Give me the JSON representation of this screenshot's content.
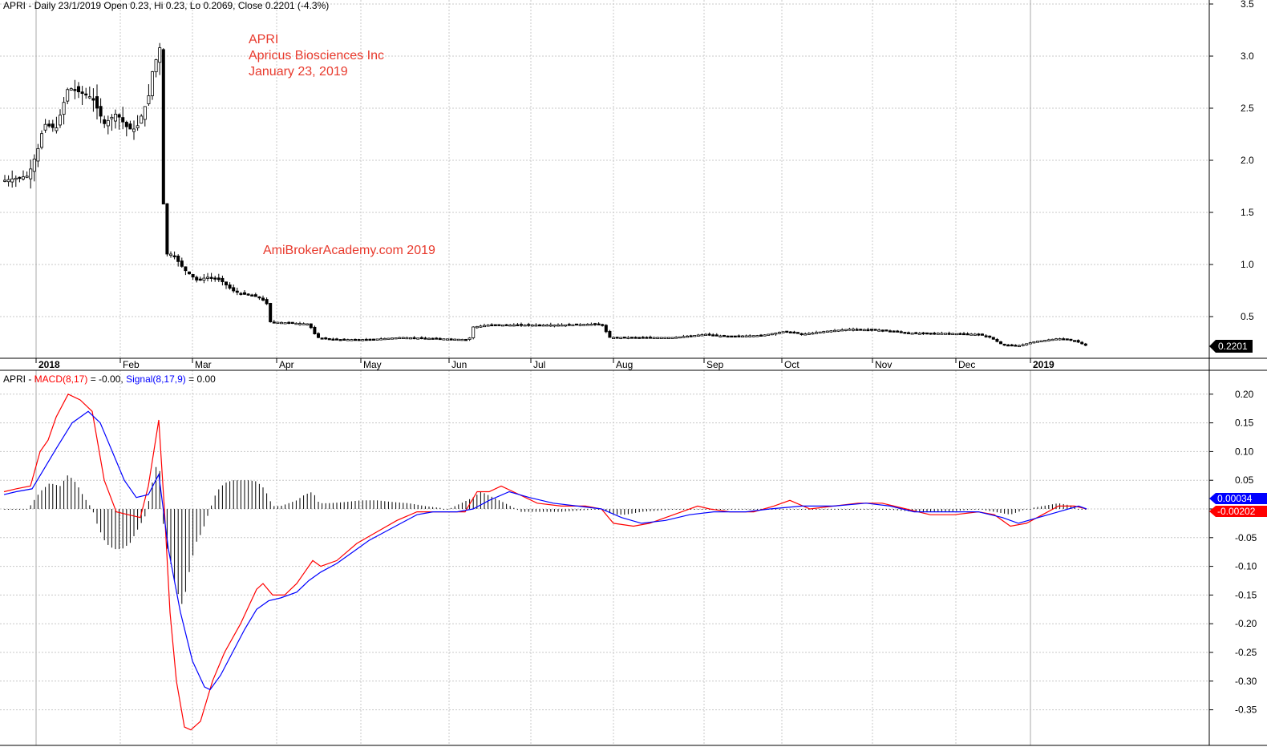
{
  "price_header": {
    "text": "APRI - Daily 23/1/2019 Open 0.23, Hi 0.23, Lo 0.2069, Close 0.2201 (-4.3%)"
  },
  "annotation": {
    "symbol": "APRI",
    "company": "Apricus Biosciences Inc",
    "date": "January 23, 2019"
  },
  "watermark": "AmiBrokerAcademy.com  2019",
  "macd_header": {
    "prefix": "APRI - ",
    "macd_label": "MACD(8,17)",
    "macd_value": " = -0.00, ",
    "signal_label": "Signal(8,17,9)",
    "signal_value": " = 0.00"
  },
  "colors": {
    "macd": "#ff0000",
    "signal": "#0000ff",
    "grid": "#c8c8c8",
    "candle": "#000000",
    "last_price_bg": "#000000",
    "macd_tag_bg": "#ff0000",
    "signal_tag_bg": "#0000ff"
  },
  "chart_data": [
    {
      "type": "candlestick",
      "symbol": "APRI",
      "ylim": [
        0.12,
        3.5
      ],
      "yticks": [
        0.5,
        1.0,
        1.5,
        2.0,
        2.5,
        3.0,
        3.5
      ],
      "ytick_labels": [
        "0.5",
        "1.0",
        "1.5",
        "2.0",
        "2.5",
        "3.0",
        "3.5"
      ],
      "month_labels": [
        "2018",
        "Feb",
        "Mar",
        "Apr",
        "May",
        "Jun",
        "Jul",
        "Aug",
        "Sep",
        "Oct",
        "Nov",
        "Dec",
        "2019"
      ],
      "year_labels": [
        "2018",
        "2019"
      ],
      "last_price": "0.2201",
      "grid": true,
      "close_path": [
        [
          0,
          1.8
        ],
        [
          35,
          1.85
        ],
        [
          47,
          2.1
        ],
        [
          55,
          2.35
        ],
        [
          70,
          2.3
        ],
        [
          85,
          2.7
        ],
        [
          100,
          2.65
        ],
        [
          115,
          2.6
        ],
        [
          130,
          2.35
        ],
        [
          145,
          2.45
        ],
        [
          160,
          2.3
        ],
        [
          170,
          2.3
        ],
        [
          185,
          2.6
        ],
        [
          190,
          2.85
        ],
        [
          200,
          3.1
        ],
        [
          205,
          1.1
        ],
        [
          215,
          1.1
        ],
        [
          230,
          0.95
        ],
        [
          245,
          0.85
        ],
        [
          260,
          0.88
        ],
        [
          275,
          0.85
        ],
        [
          290,
          0.75
        ],
        [
          300,
          0.72
        ],
        [
          315,
          0.7
        ],
        [
          325,
          0.68
        ],
        [
          333,
          0.62
        ],
        [
          336,
          0.45
        ],
        [
          360,
          0.44
        ],
        [
          385,
          0.43
        ],
        [
          395,
          0.3
        ],
        [
          420,
          0.28
        ],
        [
          460,
          0.28
        ],
        [
          500,
          0.3
        ],
        [
          540,
          0.29
        ],
        [
          585,
          0.28
        ],
        [
          590,
          0.4
        ],
        [
          610,
          0.42
        ],
        [
          650,
          0.42
        ],
        [
          700,
          0.42
        ],
        [
          750,
          0.43
        ],
        [
          760,
          0.3
        ],
        [
          800,
          0.3
        ],
        [
          840,
          0.3
        ],
        [
          880,
          0.33
        ],
        [
          905,
          0.31
        ],
        [
          950,
          0.32
        ],
        [
          980,
          0.36
        ],
        [
          1000,
          0.33
        ],
        [
          1030,
          0.36
        ],
        [
          1060,
          0.38
        ],
        [
          1100,
          0.37
        ],
        [
          1140,
          0.34
        ],
        [
          1180,
          0.34
        ],
        [
          1220,
          0.33
        ],
        [
          1235,
          0.3
        ],
        [
          1250,
          0.23
        ],
        [
          1270,
          0.22
        ],
        [
          1290,
          0.26
        ],
        [
          1320,
          0.29
        ],
        [
          1340,
          0.27
        ],
        [
          1355,
          0.22
        ]
      ]
    },
    {
      "type": "line",
      "indicator": "MACD",
      "ylim": [
        -0.4,
        0.22
      ],
      "yticks": [
        0.2,
        0.15,
        0.1,
        0.05,
        0,
        -0.05,
        -0.1,
        -0.15,
        -0.2,
        -0.25,
        -0.3,
        -0.35
      ],
      "ytick_labels": [
        "0.20",
        "0.15",
        "0.10",
        "0.05",
        "",
        "-0.05",
        "-0.10",
        "-0.15",
        "-0.20",
        "-0.25",
        "-0.30",
        "-0.35"
      ],
      "value_tags": [
        "0.00034",
        "-0.00202"
      ],
      "series": [
        {
          "name": "MACD(8,17)",
          "color": "#ff0000",
          "points": [
            [
              5,
              0.03
            ],
            [
              20,
              0.035
            ],
            [
              38,
              0.04
            ],
            [
              50,
              0.1
            ],
            [
              60,
              0.12
            ],
            [
              70,
              0.16
            ],
            [
              85,
              0.2
            ],
            [
              100,
              0.19
            ],
            [
              115,
              0.17
            ],
            [
              130,
              0.05
            ],
            [
              145,
              -0.005
            ],
            [
              160,
              -0.01
            ],
            [
              175,
              -0.015
            ],
            [
              185,
              0.04
            ],
            [
              198,
              0.155
            ],
            [
              205,
              0.0
            ],
            [
              212,
              -0.18
            ],
            [
              220,
              -0.3
            ],
            [
              230,
              -0.38
            ],
            [
              238,
              -0.385
            ],
            [
              250,
              -0.37
            ],
            [
              265,
              -0.3
            ],
            [
              280,
              -0.25
            ],
            [
              300,
              -0.2
            ],
            [
              320,
              -0.14
            ],
            [
              328,
              -0.13
            ],
            [
              340,
              -0.15
            ],
            [
              355,
              -0.15
            ],
            [
              370,
              -0.13
            ],
            [
              390,
              -0.09
            ],
            [
              400,
              -0.1
            ],
            [
              420,
              -0.09
            ],
            [
              445,
              -0.06
            ],
            [
              470,
              -0.04
            ],
            [
              495,
              -0.02
            ],
            [
              520,
              -0.005
            ],
            [
              545,
              -0.005
            ],
            [
              565,
              -0.005
            ],
            [
              580,
              -0.005
            ],
            [
              595,
              0.03
            ],
            [
              610,
              0.03
            ],
            [
              625,
              0.04
            ],
            [
              640,
              0.03
            ],
            [
              670,
              0.01
            ],
            [
              700,
              0.005
            ],
            [
              730,
              0.005
            ],
            [
              750,
              0.0
            ],
            [
              765,
              -0.025
            ],
            [
              790,
              -0.03
            ],
            [
              810,
              -0.025
            ],
            [
              840,
              -0.01
            ],
            [
              870,
              0.005
            ],
            [
              885,
              0.0
            ],
            [
              910,
              -0.005
            ],
            [
              940,
              -0.005
            ],
            [
              965,
              0.005
            ],
            [
              985,
              0.015
            ],
            [
              1010,
              0.0
            ],
            [
              1040,
              0.005
            ],
            [
              1070,
              0.01
            ],
            [
              1100,
              0.01
            ],
            [
              1130,
              0.0
            ],
            [
              1160,
              -0.01
            ],
            [
              1190,
              -0.01
            ],
            [
              1220,
              -0.005
            ],
            [
              1240,
              -0.01
            ],
            [
              1260,
              -0.03
            ],
            [
              1280,
              -0.025
            ],
            [
              1300,
              -0.01
            ],
            [
              1320,
              0.005
            ],
            [
              1340,
              0.005
            ],
            [
              1355,
              0.0
            ]
          ]
        },
        {
          "name": "Signal(8,17,9)",
          "color": "#0000ff",
          "points": [
            [
              5,
              0.025
            ],
            [
              20,
              0.03
            ],
            [
              40,
              0.035
            ],
            [
              55,
              0.07
            ],
            [
              70,
              0.105
            ],
            [
              90,
              0.15
            ],
            [
              110,
              0.17
            ],
            [
              125,
              0.15
            ],
            [
              140,
              0.1
            ],
            [
              155,
              0.05
            ],
            [
              170,
              0.02
            ],
            [
              185,
              0.025
            ],
            [
              198,
              0.06
            ],
            [
              210,
              -0.07
            ],
            [
              225,
              -0.18
            ],
            [
              240,
              -0.265
            ],
            [
              255,
              -0.31
            ],
            [
              262,
              -0.315
            ],
            [
              275,
              -0.29
            ],
            [
              290,
              -0.25
            ],
            [
              305,
              -0.21
            ],
            [
              320,
              -0.175
            ],
            [
              335,
              -0.16
            ],
            [
              350,
              -0.155
            ],
            [
              370,
              -0.145
            ],
            [
              385,
              -0.125
            ],
            [
              400,
              -0.11
            ],
            [
              420,
              -0.095
            ],
            [
              440,
              -0.075
            ],
            [
              460,
              -0.055
            ],
            [
              480,
              -0.04
            ],
            [
              500,
              -0.025
            ],
            [
              520,
              -0.01
            ],
            [
              540,
              -0.005
            ],
            [
              570,
              -0.005
            ],
            [
              590,
              0.0
            ],
            [
              610,
              0.015
            ],
            [
              635,
              0.03
            ],
            [
              660,
              0.02
            ],
            [
              690,
              0.01
            ],
            [
              720,
              0.005
            ],
            [
              750,
              0.0
            ],
            [
              775,
              -0.015
            ],
            [
              800,
              -0.025
            ],
            [
              830,
              -0.02
            ],
            [
              860,
              -0.01
            ],
            [
              890,
              -0.005
            ],
            [
              930,
              -0.005
            ],
            [
              960,
              0.0
            ],
            [
              1000,
              0.005
            ],
            [
              1040,
              0.005
            ],
            [
              1080,
              0.01
            ],
            [
              1110,
              0.005
            ],
            [
              1140,
              -0.005
            ],
            [
              1180,
              -0.005
            ],
            [
              1220,
              -0.005
            ],
            [
              1250,
              -0.015
            ],
            [
              1270,
              -0.025
            ],
            [
              1295,
              -0.015
            ],
            [
              1320,
              -0.005
            ],
            [
              1345,
              0.005
            ],
            [
              1355,
              0.0
            ]
          ]
        }
      ],
      "histogram": [
        [
          5,
          0.0
        ],
        [
          20,
          0.0
        ],
        [
          35,
          0.0
        ],
        [
          50,
          0.03
        ],
        [
          62,
          0.045
        ],
        [
          75,
          0.04
        ],
        [
          85,
          0.06
        ],
        [
          95,
          0.045
        ],
        [
          105,
          0.02
        ],
        [
          115,
          0.0
        ],
        [
          122,
          -0.03
        ],
        [
          132,
          -0.06
        ],
        [
          142,
          -0.07
        ],
        [
          152,
          -0.07
        ],
        [
          162,
          -0.06
        ],
        [
          172,
          -0.035
        ],
        [
          182,
          -0.01
        ],
        [
          192,
          0.06
        ],
        [
          198,
          0.09
        ],
        [
          205,
          -0.05
        ],
        [
          212,
          -0.09
        ],
        [
          220,
          -0.14
        ],
        [
          228,
          -0.17
        ],
        [
          236,
          -0.11
        ],
        [
          244,
          -0.06
        ],
        [
          252,
          -0.04
        ],
        [
          262,
          0.0
        ],
        [
          270,
          0.03
        ],
        [
          280,
          0.045
        ],
        [
          290,
          0.05
        ],
        [
          300,
          0.05
        ],
        [
          310,
          0.05
        ],
        [
          320,
          0.048
        ],
        [
          330,
          0.035
        ],
        [
          340,
          0.005
        ],
        [
          350,
          0.005
        ],
        [
          360,
          0.01
        ],
        [
          370,
          0.015
        ],
        [
          380,
          0.025
        ],
        [
          390,
          0.03
        ],
        [
          398,
          0.01
        ],
        [
          410,
          0.01
        ],
        [
          430,
          0.012
        ],
        [
          450,
          0.015
        ],
        [
          470,
          0.015
        ],
        [
          490,
          0.012
        ],
        [
          510,
          0.01
        ],
        [
          530,
          0.005
        ],
        [
          560,
          0.0
        ],
        [
          590,
          0.02
        ],
        [
          600,
          0.03
        ],
        [
          615,
          0.02
        ],
        [
          630,
          0.01
        ],
        [
          650,
          -0.005
        ],
        [
          700,
          -0.005
        ],
        [
          750,
          0.0
        ],
        [
          765,
          -0.01
        ],
        [
          780,
          -0.01
        ],
        [
          800,
          -0.005
        ],
        [
          850,
          0.0
        ],
        [
          900,
          0.0
        ],
        [
          950,
          0.0
        ],
        [
          1000,
          0.0
        ],
        [
          1050,
          0.0
        ],
        [
          1100,
          0.0
        ],
        [
          1140,
          -0.005
        ],
        [
          1180,
          -0.005
        ],
        [
          1220,
          0.0
        ],
        [
          1240,
          -0.005
        ],
        [
          1260,
          -0.01
        ],
        [
          1280,
          0.0
        ],
        [
          1300,
          0.005
        ],
        [
          1320,
          0.01
        ],
        [
          1340,
          0.005
        ]
      ]
    }
  ]
}
